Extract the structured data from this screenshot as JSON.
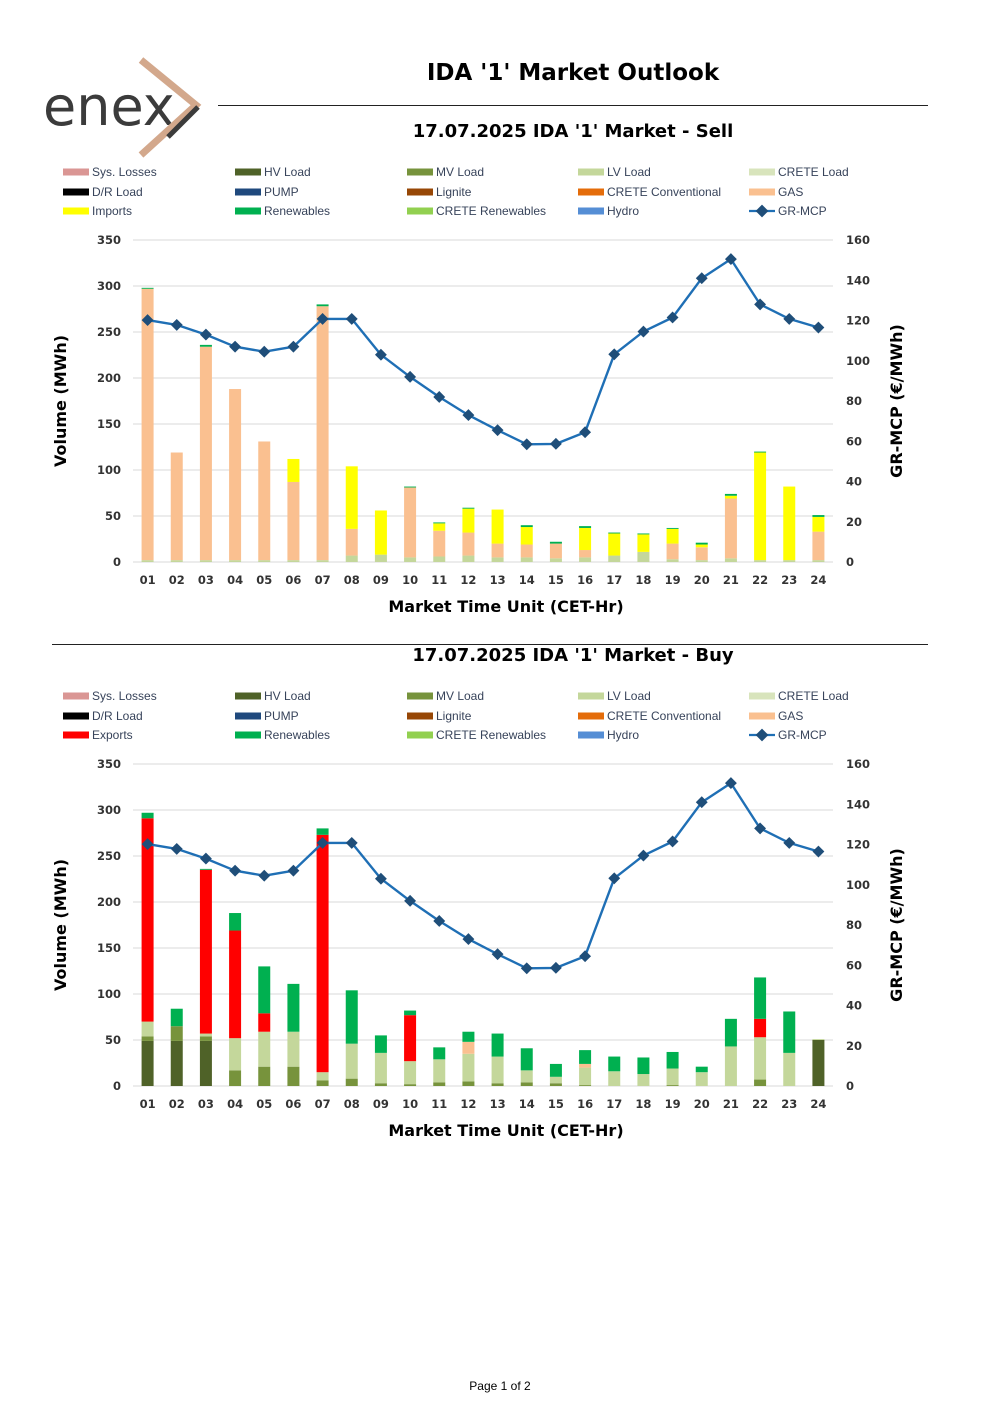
{
  "header": {
    "logo_text": "enex",
    "title": "IDA '1' Market Outlook"
  },
  "footer": {
    "page": "Page 1 of 2"
  },
  "colors": {
    "sys_losses": "#da9694",
    "hv_load": "#4f6228",
    "mv_load": "#77933c",
    "lv_load": "#c4d79b",
    "crete_load": "#d8e4bc",
    "dr_load": "#000000",
    "pump": "#1f497d",
    "lignite": "#974706",
    "crete_conventional": "#e46c0a",
    "gas": "#fac090",
    "imports": "#ffff00",
    "exports": "#ff0000",
    "renewables": "#00b050",
    "crete_renewables": "#92d050",
    "hydro": "#558ed5",
    "mcp_line": "#1f6fb5",
    "mcp_marker": "#1f4e79",
    "logo_gray": "#3b3b3b",
    "logo_accent": "#d3a88c"
  },
  "chart_data": [
    {
      "type": "bar",
      "stacked": true,
      "id": "sell",
      "title": "17.07.2025  IDA '1' Market - Sell",
      "xlabel": "Market Time Unit (CET-Hr)",
      "ylabel": "Volume (MWh)",
      "y2label": "GR-MCP (€/MWh)",
      "ylim": [
        0,
        350
      ],
      "yticks": [
        0,
        50,
        100,
        150,
        200,
        250,
        300,
        350
      ],
      "y2lim": [
        0,
        160
      ],
      "y2ticks": [
        0,
        20,
        40,
        60,
        80,
        100,
        120,
        140,
        160
      ],
      "grid": true,
      "legend_position": "top",
      "categories": [
        "01",
        "02",
        "03",
        "04",
        "05",
        "06",
        "07",
        "08",
        "09",
        "10",
        "11",
        "12",
        "13",
        "14",
        "15",
        "16",
        "17",
        "18",
        "19",
        "20",
        "21",
        "22",
        "23",
        "24"
      ],
      "legend": [
        {
          "name": "Sys. Losses",
          "key": "sys_losses",
          "kind": "bar"
        },
        {
          "name": "HV Load",
          "key": "hv_load",
          "kind": "bar"
        },
        {
          "name": "MV Load",
          "key": "mv_load",
          "kind": "bar"
        },
        {
          "name": "LV Load",
          "key": "lv_load",
          "kind": "bar"
        },
        {
          "name": "CRETE Load",
          "key": "crete_load",
          "kind": "bar"
        },
        {
          "name": "D/R Load",
          "key": "dr_load",
          "kind": "bar"
        },
        {
          "name": "PUMP",
          "key": "pump",
          "kind": "bar"
        },
        {
          "name": "Lignite",
          "key": "lignite",
          "kind": "bar"
        },
        {
          "name": "CRETE Conventional",
          "key": "crete_conventional",
          "kind": "bar"
        },
        {
          "name": "GAS",
          "key": "gas",
          "kind": "bar"
        },
        {
          "name": "Imports",
          "key": "imports",
          "kind": "bar"
        },
        {
          "name": "Renewables",
          "key": "renewables",
          "kind": "bar"
        },
        {
          "name": "CRETE Renewables",
          "key": "crete_renewables",
          "kind": "bar"
        },
        {
          "name": "Hydro",
          "key": "hydro",
          "kind": "bar"
        },
        {
          "name": "GR-MCP",
          "key": "mcp_line",
          "kind": "line"
        }
      ],
      "series": [
        {
          "name": "LV Load",
          "key": "lv_load",
          "values": [
            2,
            2,
            2,
            2,
            2,
            2,
            2,
            7,
            8,
            5,
            6,
            7,
            5,
            5,
            4,
            5,
            7,
            11,
            3,
            2,
            4,
            2,
            2,
            2
          ]
        },
        {
          "name": "GAS",
          "key": "gas",
          "values": [
            295,
            117,
            232,
            186,
            129,
            85,
            276,
            29,
            0,
            76,
            28,
            25,
            15,
            14,
            16,
            8,
            0,
            0,
            17,
            14,
            65,
            0,
            0,
            31
          ]
        },
        {
          "name": "Imports",
          "key": "imports",
          "values": [
            0,
            0,
            0,
            0,
            0,
            25,
            0,
            68,
            48,
            0,
            8,
            26,
            37,
            19,
            0,
            24,
            24,
            19,
            16,
            3,
            3,
            117,
            80,
            16
          ]
        },
        {
          "name": "Renewables",
          "key": "renewables",
          "values": [
            1,
            0,
            2,
            0,
            0,
            0,
            2,
            0,
            0,
            1,
            1,
            1,
            0,
            2,
            2,
            2,
            1,
            1,
            1,
            2,
            2,
            1,
            0,
            2
          ]
        }
      ],
      "mcp": [
        120.2,
        117.8,
        113.0,
        107.0,
        104.5,
        107.0,
        120.8,
        120.8,
        103.0,
        92.0,
        82.0,
        73.0,
        65.5,
        58.5,
        58.7,
        64.5,
        103.2,
        114.5,
        121.5,
        141.0,
        150.5,
        128.0,
        120.8,
        116.5
      ]
    },
    {
      "type": "bar",
      "stacked": true,
      "id": "buy",
      "title": "17.07.2025  IDA '1' Market - Buy",
      "xlabel": "Market Time Unit (CET-Hr)",
      "ylabel": "Volume (MWh)",
      "y2label": "GR-MCP (€/MWh)",
      "ylim": [
        0,
        350
      ],
      "yticks": [
        0,
        50,
        100,
        150,
        200,
        250,
        300,
        350
      ],
      "y2lim": [
        0,
        160
      ],
      "y2ticks": [
        0,
        20,
        40,
        60,
        80,
        100,
        120,
        140,
        160
      ],
      "grid": true,
      "legend_position": "top",
      "categories": [
        "01",
        "02",
        "03",
        "04",
        "05",
        "06",
        "07",
        "08",
        "09",
        "10",
        "11",
        "12",
        "13",
        "14",
        "15",
        "16",
        "17",
        "18",
        "19",
        "20",
        "21",
        "22",
        "23",
        "24"
      ],
      "legend": [
        {
          "name": "Sys. Losses",
          "key": "sys_losses",
          "kind": "bar"
        },
        {
          "name": "HV Load",
          "key": "hv_load",
          "kind": "bar"
        },
        {
          "name": "MV Load",
          "key": "mv_load",
          "kind": "bar"
        },
        {
          "name": "LV Load",
          "key": "lv_load",
          "kind": "bar"
        },
        {
          "name": "CRETE Load",
          "key": "crete_load",
          "kind": "bar"
        },
        {
          "name": "D/R Load",
          "key": "dr_load",
          "kind": "bar"
        },
        {
          "name": "PUMP",
          "key": "pump",
          "kind": "bar"
        },
        {
          "name": "Lignite",
          "key": "lignite",
          "kind": "bar"
        },
        {
          "name": "CRETE Conventional",
          "key": "crete_conventional",
          "kind": "bar"
        },
        {
          "name": "GAS",
          "key": "gas",
          "kind": "bar"
        },
        {
          "name": "Exports",
          "key": "exports",
          "kind": "bar"
        },
        {
          "name": "Renewables",
          "key": "renewables",
          "kind": "bar"
        },
        {
          "name": "CRETE Renewables",
          "key": "crete_renewables",
          "kind": "bar"
        },
        {
          "name": "Hydro",
          "key": "hydro",
          "kind": "bar"
        },
        {
          "name": "GR-MCP",
          "key": "mcp_line",
          "kind": "line"
        }
      ],
      "series": [
        {
          "name": "HV Load",
          "key": "hv_load",
          "values": [
            49,
            49,
            49,
            0,
            0,
            0,
            0,
            0,
            0,
            0,
            0,
            0,
            0,
            0,
            0,
            0,
            0,
            0,
            0,
            0,
            0,
            0,
            0,
            50
          ]
        },
        {
          "name": "MV Load",
          "key": "mv_load",
          "values": [
            5,
            16,
            5,
            17,
            21,
            21,
            6,
            8,
            3,
            2,
            4,
            5,
            3,
            4,
            3,
            1,
            0,
            0,
            1,
            0,
            0,
            7,
            0,
            0
          ]
        },
        {
          "name": "LV Load",
          "key": "lv_load",
          "values": [
            16,
            0,
            3,
            35,
            38,
            38,
            9,
            38,
            33,
            25,
            25,
            30,
            29,
            13,
            7,
            19,
            16,
            13,
            18,
            15,
            43,
            46,
            36,
            1
          ]
        },
        {
          "name": "GAS",
          "key": "gas",
          "values": [
            0,
            0,
            0,
            0,
            0,
            0,
            0,
            0,
            0,
            0,
            0,
            13,
            0,
            0,
            0,
            4,
            0,
            0,
            0,
            0,
            0,
            0,
            0,
            0
          ]
        },
        {
          "name": "Exports",
          "key": "exports",
          "values": [
            221,
            0,
            178,
            117,
            20,
            0,
            258,
            0,
            0,
            50,
            0,
            0,
            0,
            0,
            0,
            0,
            0,
            0,
            0,
            0,
            0,
            20,
            0,
            0
          ]
        },
        {
          "name": "Renewables",
          "key": "renewables",
          "values": [
            6,
            19,
            1,
            19,
            51,
            52,
            7,
            58,
            19,
            5,
            13,
            11,
            25,
            24,
            14,
            15,
            16,
            18,
            18,
            6,
            30,
            45,
            45,
            0
          ]
        }
      ],
      "mcp": [
        120.2,
        117.8,
        113.0,
        107.0,
        104.5,
        107.0,
        120.8,
        120.8,
        103.0,
        92.0,
        82.0,
        73.0,
        65.5,
        58.5,
        58.7,
        64.5,
        103.2,
        114.5,
        121.5,
        141.0,
        150.5,
        128.0,
        120.8,
        116.5
      ]
    }
  ]
}
